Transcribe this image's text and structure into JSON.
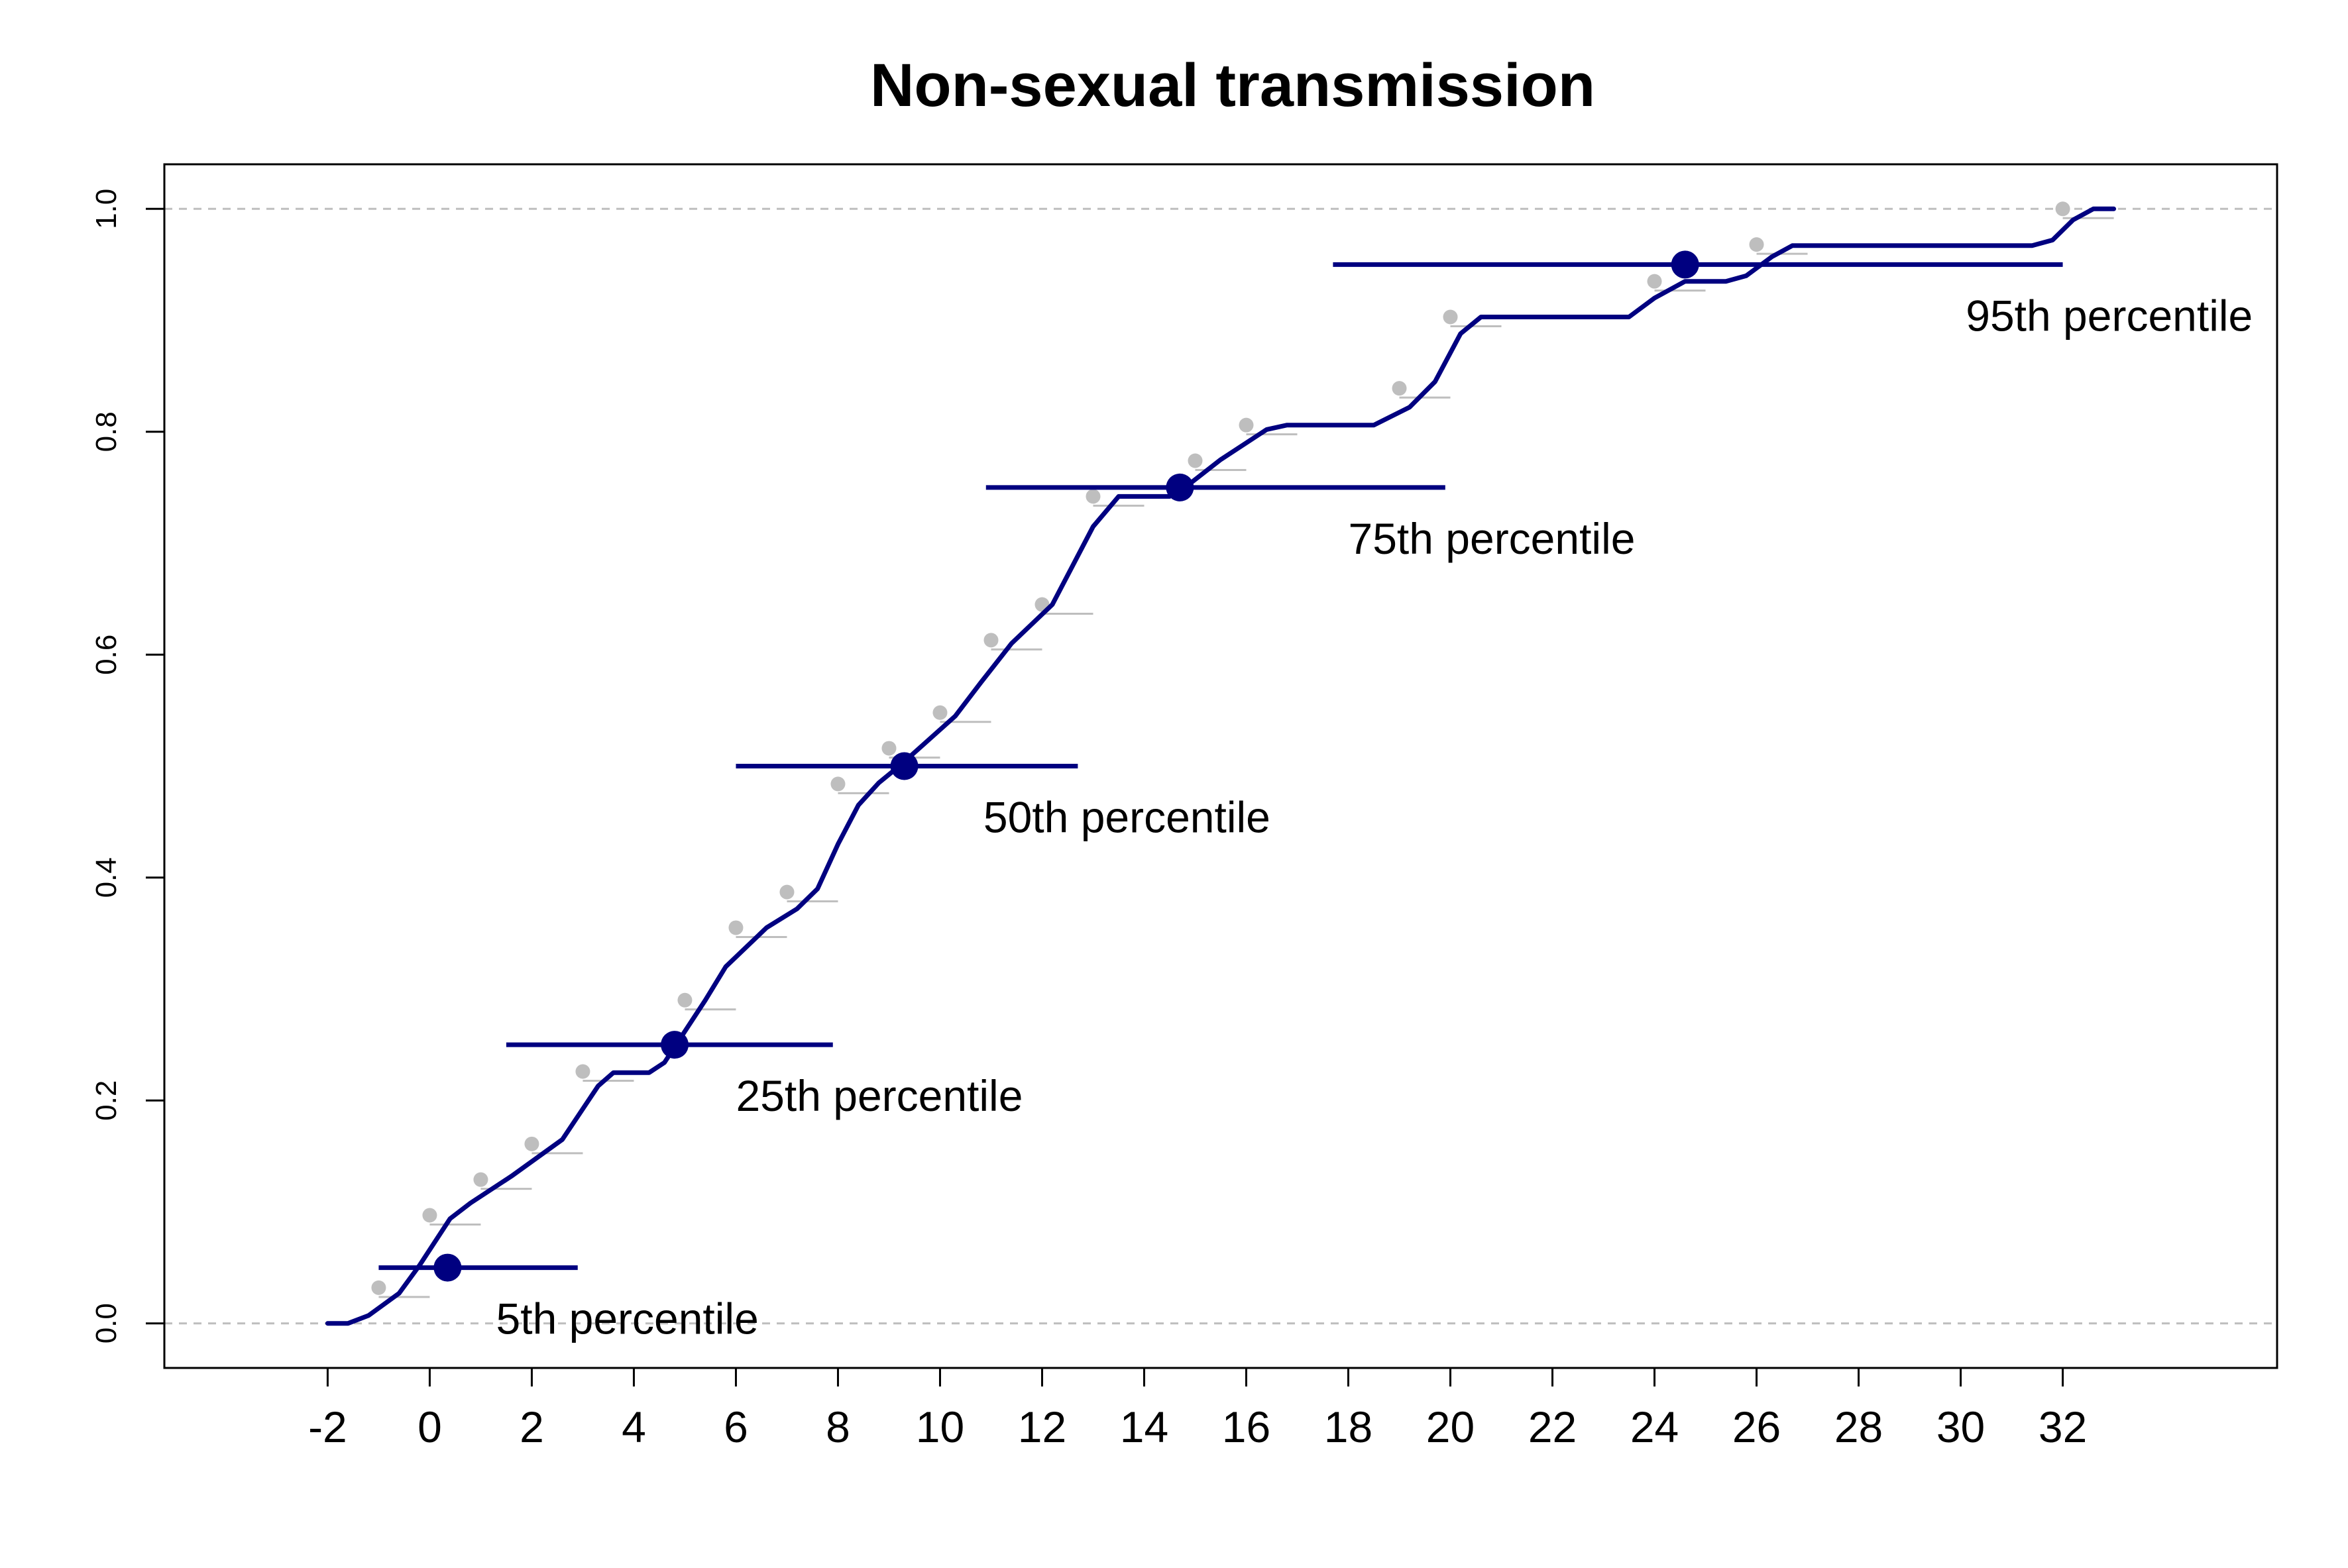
{
  "chart_data": {
    "type": "line",
    "title": "Non-sexual transmission",
    "xlabel": "",
    "ylabel": "",
    "xlim": [
      -5.2,
      36.2
    ],
    "ylim": [
      -0.04,
      1.04
    ],
    "x_ticks": [
      "-2",
      "0",
      "2",
      "4",
      "6",
      "8",
      "10",
      "12",
      "14",
      "16",
      "18",
      "20",
      "22",
      "24",
      "26",
      "28",
      "30",
      "32"
    ],
    "y_ticks": [
      "0.0",
      "0.2",
      "0.4",
      "0.6",
      "0.8",
      "1.0"
    ],
    "reference_lines": [
      0.0,
      1.0
    ],
    "grid": false,
    "colors": {
      "line": "#000080",
      "observed": "#bebebe",
      "reference": "#bebebe",
      "axis": "#000000"
    },
    "series": [
      {
        "kind": "fitted-curve",
        "points": [
          [
            -2.0,
            0.0
          ],
          [
            -1.6,
            0.0
          ],
          [
            -1.2,
            0.007
          ],
          [
            -0.6,
            0.027
          ],
          [
            -0.2,
            0.052
          ],
          [
            0.4,
            0.094
          ],
          [
            0.8,
            0.108
          ],
          [
            1.6,
            0.132
          ],
          [
            2.6,
            0.165
          ],
          [
            3.3,
            0.213
          ],
          [
            3.6,
            0.225
          ],
          [
            4.3,
            0.225
          ],
          [
            4.6,
            0.234
          ],
          [
            5.4,
            0.29
          ],
          [
            5.8,
            0.32
          ],
          [
            6.6,
            0.355
          ],
          [
            7.2,
            0.372
          ],
          [
            7.6,
            0.39
          ],
          [
            8.0,
            0.43
          ],
          [
            8.4,
            0.465
          ],
          [
            8.8,
            0.485
          ],
          [
            9.2,
            0.5
          ],
          [
            10.3,
            0.545
          ],
          [
            10.8,
            0.575
          ],
          [
            11.4,
            0.61
          ],
          [
            12.2,
            0.645
          ],
          [
            12.6,
            0.68
          ],
          [
            13.0,
            0.715
          ],
          [
            13.5,
            0.742
          ],
          [
            14.5,
            0.742
          ],
          [
            14.8,
            0.75
          ],
          [
            15.5,
            0.775
          ],
          [
            16.4,
            0.802
          ],
          [
            16.8,
            0.806
          ],
          [
            18.5,
            0.806
          ],
          [
            19.2,
            0.822
          ],
          [
            19.7,
            0.845
          ],
          [
            20.2,
            0.888
          ],
          [
            20.6,
            0.903
          ],
          [
            23.5,
            0.903
          ],
          [
            24.0,
            0.92
          ],
          [
            24.6,
            0.935
          ],
          [
            25.4,
            0.935
          ],
          [
            25.8,
            0.94
          ],
          [
            26.3,
            0.957
          ],
          [
            26.7,
            0.967
          ],
          [
            31.4,
            0.967
          ],
          [
            31.8,
            0.972
          ],
          [
            32.2,
            0.99
          ],
          [
            32.6,
            1.0
          ],
          [
            33.0,
            1.0
          ]
        ]
      },
      {
        "kind": "observed",
        "points": [
          [
            -1,
            0.032
          ],
          [
            0,
            0.097
          ],
          [
            1,
            0.129
          ],
          [
            2,
            0.161
          ],
          [
            3,
            0.226
          ],
          [
            5,
            0.29
          ],
          [
            6,
            0.355
          ],
          [
            7,
            0.387
          ],
          [
            8,
            0.484
          ],
          [
            9,
            0.516
          ],
          [
            10,
            0.548
          ],
          [
            11,
            0.613
          ],
          [
            12,
            0.645
          ],
          [
            13,
            0.742
          ],
          [
            15,
            0.774
          ],
          [
            16,
            0.806
          ],
          [
            19,
            0.839
          ],
          [
            20,
            0.903
          ],
          [
            24,
            0.935
          ],
          [
            26,
            0.968
          ],
          [
            32,
            1.0
          ]
        ]
      }
    ],
    "percentiles": [
      {
        "label": "5th percentile",
        "x": 0.35,
        "y": 0.05,
        "ci": [
          -1.0,
          2.9
        ]
      },
      {
        "label": "25th percentile",
        "x": 4.8,
        "y": 0.25,
        "ci": [
          1.5,
          7.9
        ]
      },
      {
        "label": "50th percentile",
        "x": 9.3,
        "y": 0.5,
        "ci": [
          6.0,
          12.7
        ]
      },
      {
        "label": "75th percentile",
        "x": 14.7,
        "y": 0.75,
        "ci": [
          10.9,
          19.9
        ]
      },
      {
        "label": "95th percentile",
        "x": 24.6,
        "y": 0.95,
        "ci": [
          17.7,
          32.0
        ]
      }
    ]
  }
}
